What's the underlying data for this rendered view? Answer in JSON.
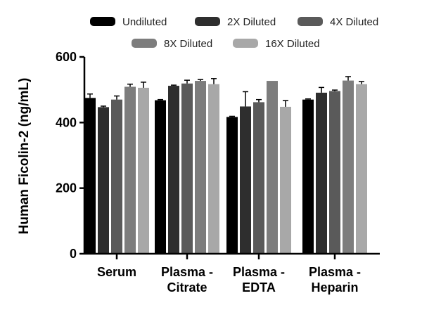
{
  "chart_data": {
    "type": "bar",
    "title": "",
    "xlabel": "",
    "ylabel": "Human Ficolin-2 (ng/mL)",
    "ylim": [
      0,
      600
    ],
    "yticks": [
      0,
      200,
      400,
      600
    ],
    "categories": [
      [
        "Serum"
      ],
      [
        "Plasma -",
        "Citrate"
      ],
      [
        "Plasma -",
        "EDTA"
      ],
      [
        "Plasma -",
        "Heparin"
      ]
    ],
    "series": [
      {
        "name": "Undiluted",
        "color": "#000000",
        "values": [
          475,
          468,
          417,
          470
        ],
        "errors": [
          12,
          2,
          2,
          2
        ]
      },
      {
        "name": "2X Diluted",
        "color": "#2e2e2e",
        "values": [
          447,
          512,
          449,
          491
        ],
        "errors": [
          3,
          2,
          45,
          16
        ]
      },
      {
        "name": "4X Diluted",
        "color": "#5a5a5a",
        "values": [
          470,
          519,
          462,
          496
        ],
        "errors": [
          11,
          10,
          8,
          3
        ]
      },
      {
        "name": "8X Diluted",
        "color": "#7d7d7d",
        "values": [
          509,
          527,
          527,
          528
        ],
        "errors": [
          8,
          4,
          0,
          12
        ]
      },
      {
        "name": "16X Diluted",
        "color": "#a8a8a8",
        "values": [
          506,
          517,
          448,
          517
        ],
        "errors": [
          17,
          17,
          19,
          8
        ]
      }
    ],
    "legend_position": "top",
    "grid": false
  }
}
